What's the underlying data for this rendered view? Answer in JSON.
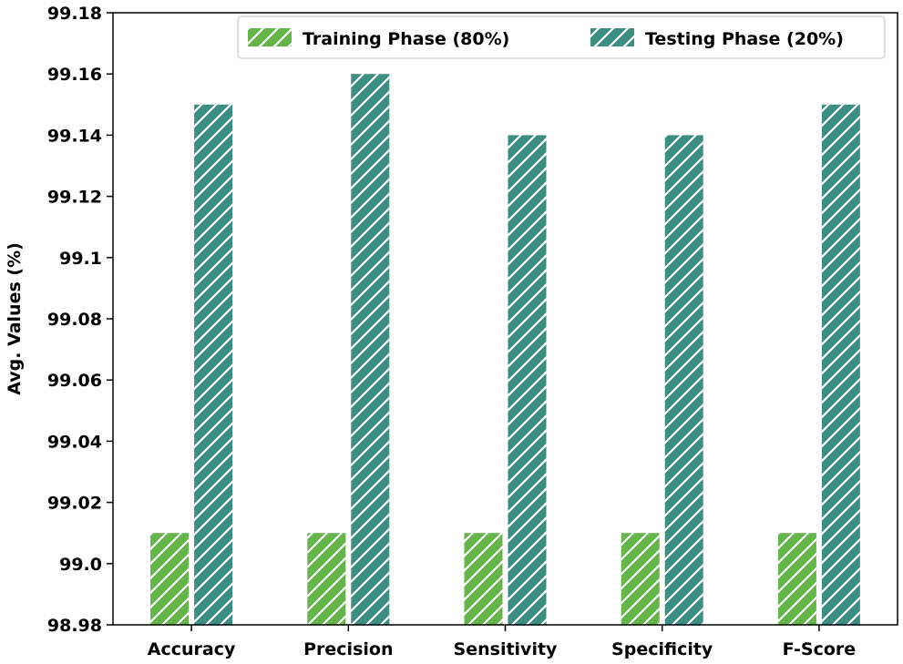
{
  "chart_data": {
    "type": "bar",
    "title": "",
    "xlabel": "",
    "ylabel": "Avg. Values (%)",
    "categories": [
      "Accuracy",
      "Precision",
      "Sensitivity",
      "Specificity",
      "F-Score"
    ],
    "series": [
      {
        "name": "Training Phase (80%)",
        "values": [
          99.01,
          99.01,
          99.01,
          99.01,
          99.01
        ],
        "color": "#64b54a"
      },
      {
        "name": "Testing Phase (20%)",
        "values": [
          99.15,
          99.16,
          99.14,
          99.14,
          99.15
        ],
        "color": "#3d8e82"
      }
    ],
    "ylim": [
      98.98,
      99.18
    ],
    "yticks": [
      98.98,
      99.0,
      99.02,
      99.04,
      99.06,
      99.08,
      99.1,
      99.12,
      99.14,
      99.16,
      99.18
    ],
    "ytick_labels": [
      "98.98",
      "99.0",
      "99.02",
      "99.04",
      "99.06",
      "99.08",
      "99.1",
      "99.12",
      "99.14",
      "99.16",
      "99.18"
    ],
    "hatch": "diagonal",
    "grid": false,
    "legend_position": "top-right"
  }
}
